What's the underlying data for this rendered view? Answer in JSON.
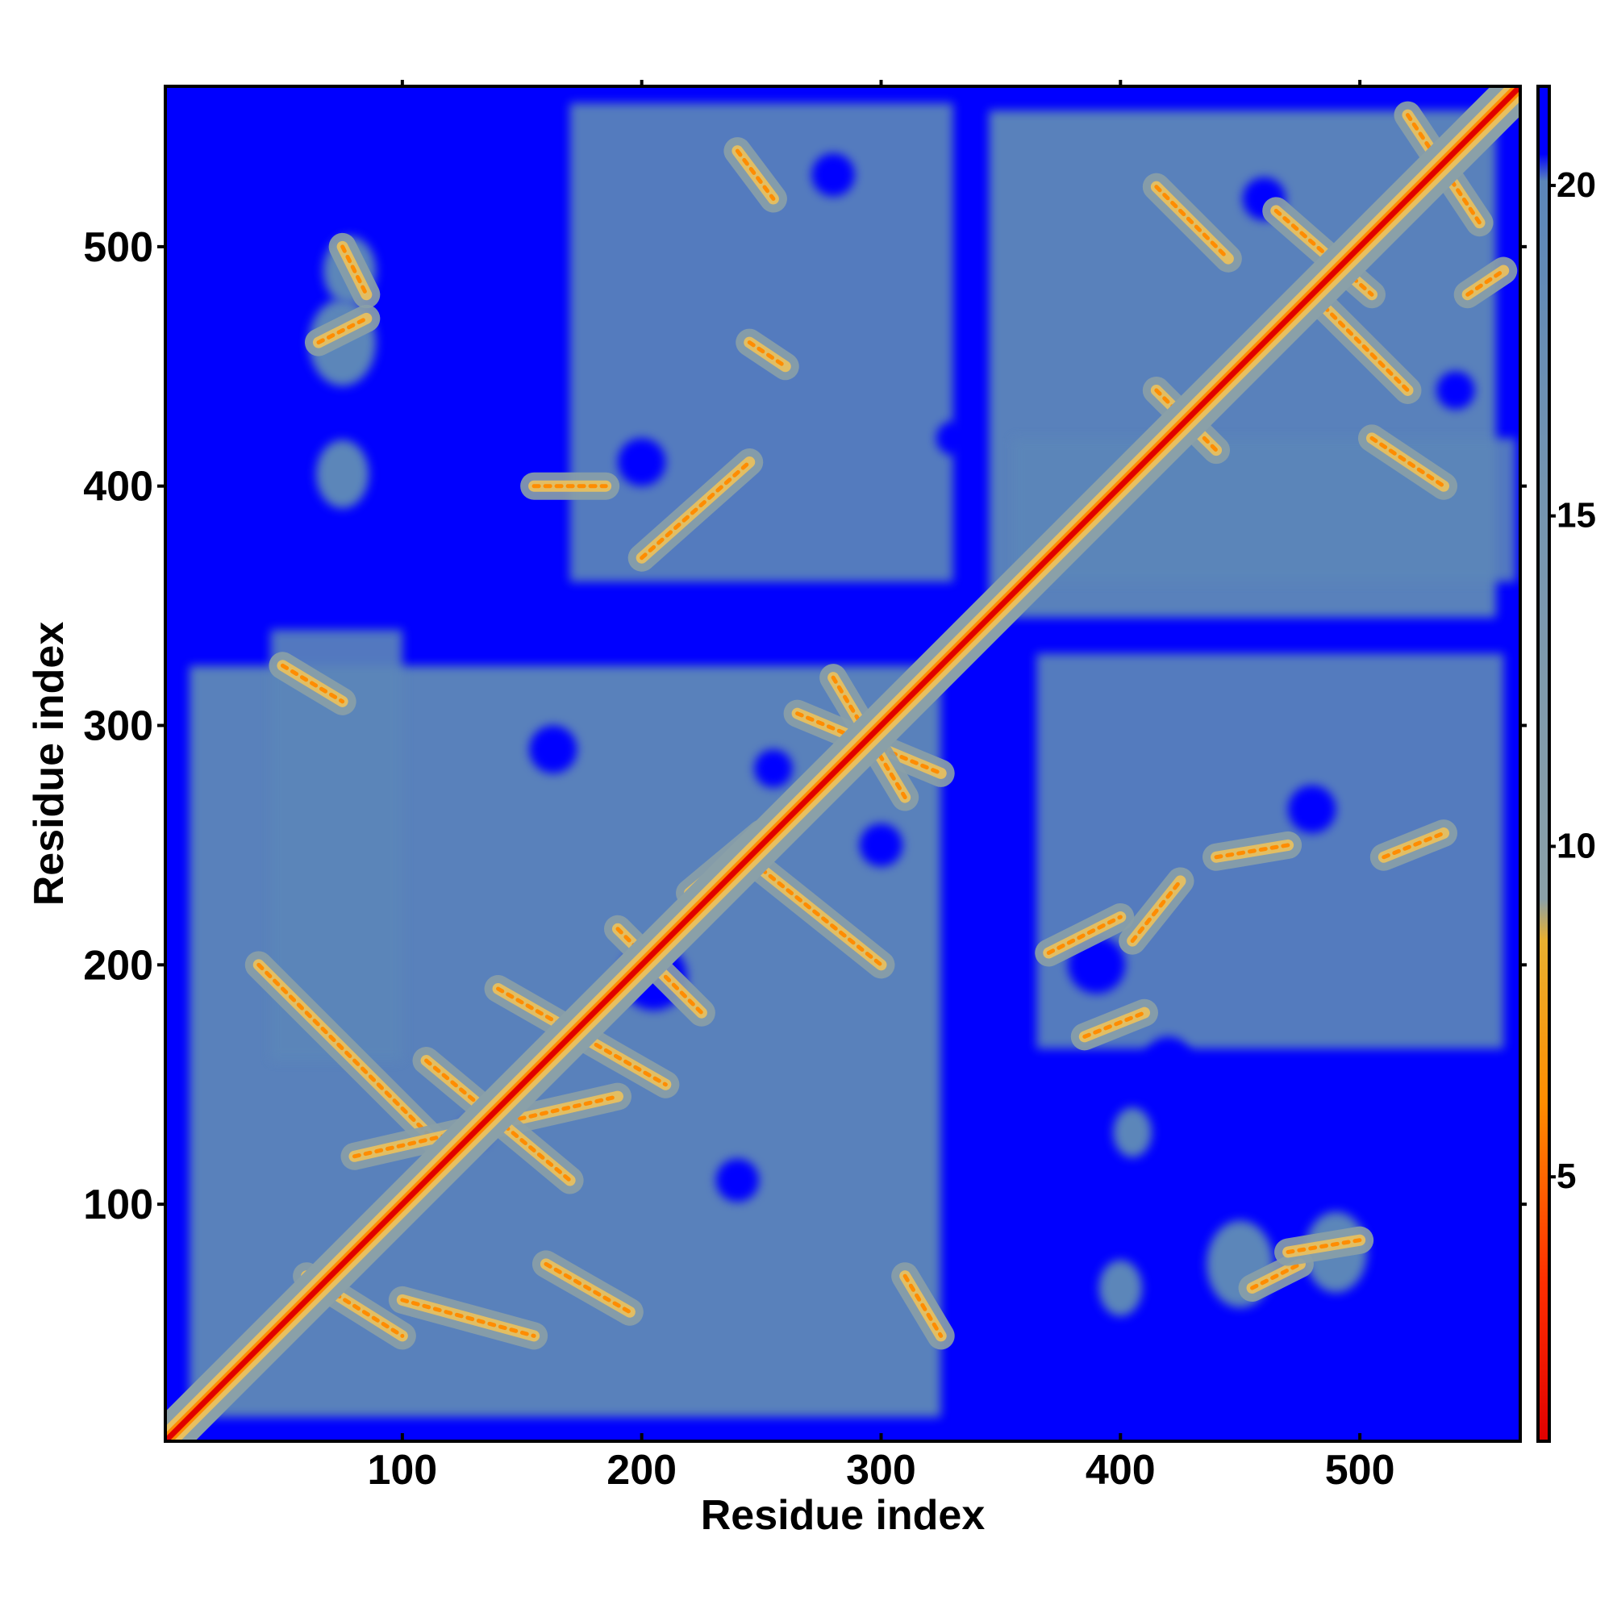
{
  "chart_data": {
    "type": "heatmap",
    "title": "",
    "xlabel": "Residue index",
    "ylabel": "Residue index",
    "xlim": [
      1,
      567
    ],
    "ylim": [
      1,
      567
    ],
    "x_ticks": [
      100,
      200,
      300,
      400,
      500
    ],
    "y_ticks": [
      100,
      200,
      300,
      400,
      500
    ],
    "x_tick_labels": [
      "100",
      "200",
      "300",
      "400",
      "500"
    ],
    "y_tick_labels": [
      "100",
      "200",
      "300",
      "400",
      "500"
    ],
    "colorbar": {
      "range": [
        1,
        21.5
      ],
      "ticks": [
        5,
        10,
        15,
        20
      ],
      "tick_labels": [
        "5",
        "10",
        "15",
        "20"
      ],
      "colors": {
        "low": "#e00000",
        "mid_low": "#ff8c00",
        "mid": "#e8c060",
        "mid_high": "#8aa0a8",
        "high": "#5b86b9",
        "max": "#0000ff"
      }
    },
    "matrix_description": "Symmetric residue-residue distance map; red diagonal, grey-blue contact regions, saturated blue for distant pairs",
    "domains": [
      {
        "start": 1,
        "end": 335
      },
      {
        "start": 335,
        "end": 567
      }
    ],
    "contact_features": [
      {
        "x": [
          40,
          120
        ],
        "y": [
          200,
          120
        ]
      },
      {
        "x": [
          80,
          190
        ],
        "y": [
          120,
          145
        ]
      },
      {
        "x": [
          110,
          170
        ],
        "y": [
          160,
          110
        ]
      },
      {
        "x": [
          140,
          210
        ],
        "y": [
          190,
          150
        ]
      },
      {
        "x": [
          190,
          225
        ],
        "y": [
          215,
          180
        ]
      },
      {
        "x": [
          220,
          250
        ],
        "y": [
          230,
          255
        ]
      },
      {
        "x": [
          250,
          300
        ],
        "y": [
          240,
          200
        ]
      },
      {
        "x": [
          265,
          325
        ],
        "y": [
          305,
          280
        ]
      },
      {
        "x": [
          280,
          310
        ],
        "y": [
          320,
          270
        ]
      },
      {
        "x": [
          50,
          75
        ],
        "y": [
          325,
          310
        ]
      },
      {
        "x": [
          60,
          100
        ],
        "y": [
          70,
          45
        ]
      },
      {
        "x": [
          100,
          155
        ],
        "y": [
          60,
          45
        ]
      },
      {
        "x": [
          160,
          195
        ],
        "y": [
          75,
          55
        ]
      },
      {
        "x": [
          310,
          325
        ],
        "y": [
          70,
          45
        ]
      },
      {
        "x": [
          200,
          245
        ],
        "y": [
          370,
          410
        ]
      },
      {
        "x": [
          155,
          185
        ],
        "y": [
          400,
          400
        ]
      },
      {
        "x": [
          245,
          260
        ],
        "y": [
          460,
          450
        ]
      },
      {
        "x": [
          240,
          255
        ],
        "y": [
          540,
          520
        ]
      },
      {
        "x": [
          65,
          85
        ],
        "y": [
          460,
          470
        ]
      },
      {
        "x": [
          75,
          85
        ],
        "y": [
          500,
          480
        ]
      },
      {
        "x": [
          370,
          400
        ],
        "y": [
          205,
          220
        ]
      },
      {
        "x": [
          405,
          425
        ],
        "y": [
          210,
          235
        ]
      },
      {
        "x": [
          385,
          410
        ],
        "y": [
          170,
          180
        ]
      },
      {
        "x": [
          440,
          470
        ],
        "y": [
          245,
          250
        ]
      },
      {
        "x": [
          510,
          535
        ],
        "y": [
          245,
          255
        ]
      },
      {
        "x": [
          455,
          475
        ],
        "y": [
          65,
          75
        ]
      },
      {
        "x": [
          470,
          500
        ],
        "y": [
          80,
          85
        ]
      },
      {
        "x": [
          415,
          440
        ],
        "y": [
          440,
          415
        ]
      },
      {
        "x": [
          505,
          535
        ],
        "y": [
          420,
          400
        ]
      },
      {
        "x": [
          520,
          550
        ],
        "y": [
          555,
          510
        ]
      },
      {
        "x": [
          415,
          445
        ],
        "y": [
          525,
          495
        ]
      },
      {
        "x": [
          465,
          505
        ],
        "y": [
          515,
          480
        ]
      },
      {
        "x": [
          485,
          520
        ],
        "y": [
          475,
          440
        ]
      },
      {
        "x": [
          545,
          560
        ],
        "y": [
          480,
          490
        ]
      }
    ]
  }
}
